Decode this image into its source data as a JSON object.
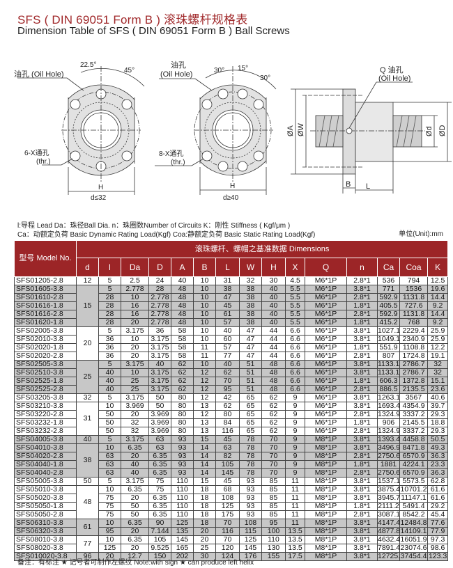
{
  "title": "SFS ( DIN 69051 Form B ) 滚珠螺杆规格表",
  "subtitle": "Dimension Table of SFS ( DIN 69051 Form B ) Ball Screws",
  "diagrams": {
    "flange1": {
      "angle1": "22.5°",
      "angle2": "45°",
      "oil_hole": "油孔 (Oil Hole)",
      "holes": "6-X通孔",
      "thr": "(thr.)",
      "h": "H",
      "cond": "d≤32"
    },
    "flange2": {
      "oil_hole_cn": "油孔",
      "oil_hole_en": "(Oil Hole)",
      "angle1": "30°",
      "angle2": "15°",
      "angle3": "30°",
      "holes": "8-X通孔",
      "thr": "(thr.)",
      "h": "H",
      "cond": "d≥40"
    },
    "side": {
      "q_label": "Q 油孔",
      "oil_hole": "(Oil Hole)",
      "a": "ØA",
      "w": "ØW",
      "d": "Ød",
      "D": "ØD",
      "b": "B",
      "l": "L"
    }
  },
  "legend": {
    "line1": "l:导程 Lead  Da：珠径Ball Dia.   n：珠圈数Number of Circuits   K：刚性  Stiffness ( Kgf/μm )",
    "line2": "Ca：动额定负荷  Basic Dynamic Rating Load(Kgf)   Coa:静额定负荷  Basic Static Rating Load(Kgf)",
    "unit": "单位(Unit):mm"
  },
  "table": {
    "model_header": "型号 Model No.",
    "dims_header": "滚珠螺杆、螺帽之基准数据 Dimensions",
    "columns": [
      "d",
      "l",
      "Da",
      "D",
      "A",
      "B",
      "L",
      "W",
      "H",
      "X",
      "Q",
      "n",
      "Ca",
      "Coa",
      "K"
    ],
    "groups": [
      {
        "d": "12",
        "shaded": false,
        "rows": [
          [
            "SFS01205-2.8",
            "5",
            "2.5",
            "24",
            "40",
            "10",
            "31",
            "32",
            "30",
            "4.5",
            "M6*1P",
            "2.8*1",
            "536",
            "794",
            "12.5"
          ]
        ]
      },
      {
        "d": "15",
        "shaded": true,
        "rows": [
          [
            "SFS01605-3.8",
            "5",
            "2.778",
            "28",
            "48",
            "10",
            "38",
            "38",
            "40",
            "5.5",
            "M6*1P",
            "3.8*1",
            "771",
            "1536",
            "19.6"
          ],
          [
            "SFS01610-2.8",
            "10",
            "2.778",
            "28",
            "48",
            "10",
            "47",
            "38",
            "40",
            "5.5",
            "M6*1P",
            "2.8*1",
            "592.9",
            "1131.8",
            "14.4"
          ],
          [
            "SFS01616-1.8",
            "16",
            "2.778",
            "28",
            "48",
            "10",
            "45",
            "38",
            "40",
            "5.5",
            "M6*1P",
            "1.8*1",
            "405.5",
            "727.6",
            "9.2"
          ],
          [
            "SFS01616-2.8",
            "16",
            "2.778",
            "28",
            "48",
            "10",
            "61",
            "38",
            "40",
            "5.5",
            "M6*1P",
            "2.8*1",
            "592.9",
            "1131.8",
            "14.4"
          ],
          [
            "SFS01620-1.8",
            "20",
            "2.778",
            "28",
            "48",
            "10",
            "57",
            "38",
            "40",
            "5.5",
            "M6*1P",
            "1.8*1",
            "415.2",
            "768",
            "9.2"
          ]
        ]
      },
      {
        "d": "20",
        "shaded": false,
        "rows": [
          [
            "SFS02005-3.8",
            "5",
            "3.175",
            "36",
            "58",
            "10",
            "40",
            "47",
            "44",
            "6.6",
            "M6*1P",
            "3.8*1",
            "1027.1",
            "2229.4",
            "25.9"
          ],
          [
            "SFS02010-3.8",
            "10",
            "3.175",
            "36",
            "58",
            "10",
            "60",
            "47",
            "44",
            "6.6",
            "M6*1P",
            "3.8*1",
            "1049.1",
            "2340.9",
            "25.9"
          ],
          [
            "SFS02020-1.8",
            "20",
            "3.175",
            "36",
            "58",
            "11",
            "57",
            "47",
            "44",
            "6.6",
            "M6*1P",
            "1.8*1",
            "551.9",
            "1108.8",
            "12.2"
          ],
          [
            "SFS02020-2.8",
            "20",
            "3.175",
            "36",
            "58",
            "11",
            "77",
            "47",
            "44",
            "6.6",
            "M6*1P",
            "2.8*1",
            "807",
            "1724.8",
            "19.1"
          ]
        ]
      },
      {
        "d": "25",
        "shaded": true,
        "rows": [
          [
            "SFS02505-3.8",
            "5",
            "3.175",
            "40",
            "62",
            "10",
            "40",
            "51",
            "48",
            "6.6",
            "M6*1P",
            "3.8*1",
            "1133.1",
            "2786.7",
            "32"
          ],
          [
            "SFS02510-3.8",
            "10",
            "3.175",
            "40",
            "62",
            "12",
            "62",
            "51",
            "48",
            "6.6",
            "M6*1P",
            "3.8*1",
            "1133.1",
            "2786.7",
            "32"
          ],
          [
            "SFS02525-1.8",
            "25",
            "3.175",
            "40",
            "62",
            "12",
            "70",
            "51",
            "48",
            "6.6",
            "M6*1P",
            "1.8*1",
            "606.3",
            "1372.8",
            "15.1"
          ],
          [
            "SFS02525-2.8",
            "25",
            "3.175",
            "40",
            "62",
            "12",
            "95",
            "51",
            "48",
            "6.6",
            "M6*1P",
            "2.8*1",
            "886.5",
            "2135.5",
            "23.6"
          ]
        ]
      },
      {
        "d": "32",
        "shaded": false,
        "rows": [
          [
            "SFS03205-3.8",
            "5",
            "3.175",
            "50",
            "80",
            "12",
            "42",
            "65",
            "62",
            "9",
            "M6*1P",
            "3.8*1",
            "1263.1",
            "3567",
            "40.6"
          ]
        ]
      },
      {
        "d": "31",
        "shaded": false,
        "rows": [
          [
            "SFS03210-3.8",
            "10",
            "3.969",
            "50",
            "80",
            "13",
            "62",
            "65",
            "62",
            "9",
            "M6*1P",
            "3.8*1",
            "1693.4",
            "4354.9",
            "39.7"
          ],
          [
            "SFS03220-2.8",
            "20",
            "3.969",
            "50",
            "80",
            "12",
            "80",
            "65",
            "62",
            "9",
            "M6*1P",
            "2.8*1",
            "1324.9",
            "3337.2",
            "29.3"
          ],
          [
            "SFS03232-1.8",
            "32",
            "3.969",
            "50",
            "80",
            "13",
            "84",
            "65",
            "62",
            "9",
            "M6*1P",
            "1.8*1",
            "906",
            "2145.5",
            "18.8"
          ],
          [
            "SFS03232-2.8",
            "32",
            "3.969",
            "50",
            "80",
            "13",
            "116",
            "65",
            "62",
            "9",
            "M6*1P",
            "2.8*1",
            "1324.9",
            "3337.2",
            "29.3"
          ]
        ]
      },
      {
        "d": "40",
        "shaded": true,
        "rows": [
          [
            "SFS04005-3.8",
            "5",
            "3.175",
            "63",
            "93",
            "15",
            "45",
            "78",
            "70",
            "9",
            "M8*1P",
            "3.8*1",
            "1393.4",
            "4458.8",
            "50.5"
          ]
        ]
      },
      {
        "d": "38",
        "shaded": true,
        "rows": [
          [
            "SFS04010-3.8",
            "10",
            "6.35",
            "63",
            "93",
            "14",
            "63",
            "78",
            "70",
            "9",
            "M8*1P",
            "3.8*1",
            "3496.9",
            "8471.8",
            "49.3"
          ],
          [
            "SFS04020-2.8",
            "20",
            "6.35",
            "63",
            "93",
            "14",
            "82",
            "78",
            "70",
            "9",
            "M8*1P",
            "2.8*1",
            "2750.6",
            "6570.9",
            "36.3"
          ],
          [
            "SFS04040-1.8",
            "40",
            "6.35",
            "63",
            "93",
            "14",
            "105",
            "78",
            "70",
            "9",
            "M8*1P",
            "1.8*1",
            "1881",
            "4224.1",
            "23.3"
          ],
          [
            "SFS04040-2.8",
            "40",
            "6.35",
            "63",
            "93",
            "14",
            "145",
            "78",
            "70",
            "9",
            "M8*1P",
            "2.8*1",
            "2750.6",
            "6570.9",
            "36.3"
          ]
        ]
      },
      {
        "d": "50",
        "shaded": false,
        "rows": [
          [
            "SFS05005-3.8",
            "5",
            "3.175",
            "75",
            "110",
            "15",
            "45",
            "93",
            "85",
            "11",
            "M8*1P",
            "3.8*1",
            "1537.1",
            "5573.5",
            "62.8"
          ]
        ]
      },
      {
        "d": "48",
        "shaded": false,
        "rows": [
          [
            "SFS05010-3.8",
            "10",
            "6.35",
            "75",
            "110",
            "18",
            "68",
            "93",
            "85",
            "11",
            "M8*1P",
            "3.8*1",
            "3875.4",
            "10701.2",
            "61.6"
          ],
          [
            "SFS05020-3.8",
            "20",
            "6.35",
            "75",
            "110",
            "18",
            "108",
            "93",
            "85",
            "11",
            "M8*1P",
            "3.8*1",
            "3945.7",
            "11147.1",
            "61.6"
          ],
          [
            "SFS05050-1.8",
            "50",
            "6.35",
            "75",
            "110",
            "18",
            "125",
            "93",
            "85",
            "11",
            "M8*1P",
            "1.8*1",
            "2111.2",
            "5491.4",
            "29.2"
          ],
          [
            "SFS05050-2.8",
            "50",
            "6.35",
            "75",
            "110",
            "18",
            "175",
            "93",
            "85",
            "11",
            "M8*1P",
            "2.8*1",
            "3087.1",
            "8542.2",
            "45.4"
          ]
        ]
      },
      {
        "d": "61",
        "shaded": true,
        "rows": [
          [
            "SFS06310-3.8",
            "10",
            "6.35",
            "90",
            "125",
            "18",
            "70",
            "108",
            "95",
            "11",
            "M8*1P",
            "3.8*1",
            "4147.4",
            "12484.8",
            "77.6"
          ],
          [
            "SFS06320-3.8",
            "20",
            "7.144",
            "95",
            "135",
            "20",
            "116",
            "115",
            "100",
            "13.5",
            "M8*1P",
            "3.8*1",
            "4877.8",
            "14109.1",
            "77.9"
          ]
        ]
      },
      {
        "d": "77",
        "shaded": false,
        "rows": [
          [
            "SFS08010-3.8",
            "10",
            "6.35",
            "105",
            "145",
            "20",
            "70",
            "125",
            "110",
            "13.5",
            "M8*1P",
            "3.8*1",
            "4632.4",
            "16051.9",
            "97.3"
          ],
          [
            "SFS08020-3.8",
            "20",
            "9.525",
            "125",
            "165",
            "25",
            "120",
            "145",
            "130",
            "13.5",
            "M8*1P",
            "3.8*1",
            "7891.4",
            "23074.6",
            "98.6"
          ]
        ]
      },
      {
        "d": "96",
        "shaded": true,
        "rows": [
          [
            "SFS010020-3.8",
            "20",
            "12.7",
            "150",
            "202",
            "30",
            "124",
            "176",
            "155",
            "17.5",
            "M8*1P",
            "3.8*1",
            "12725.1",
            "37454.4",
            "123.3"
          ]
        ]
      }
    ]
  },
  "note": "备注：有标注 ★ 记号者可制作左螺纹   Note:with sign ★ can produce left helix",
  "colors": {
    "header_red": "#9c2527",
    "title_red": "#a0282a",
    "row_shade": "#c7c7c7"
  }
}
